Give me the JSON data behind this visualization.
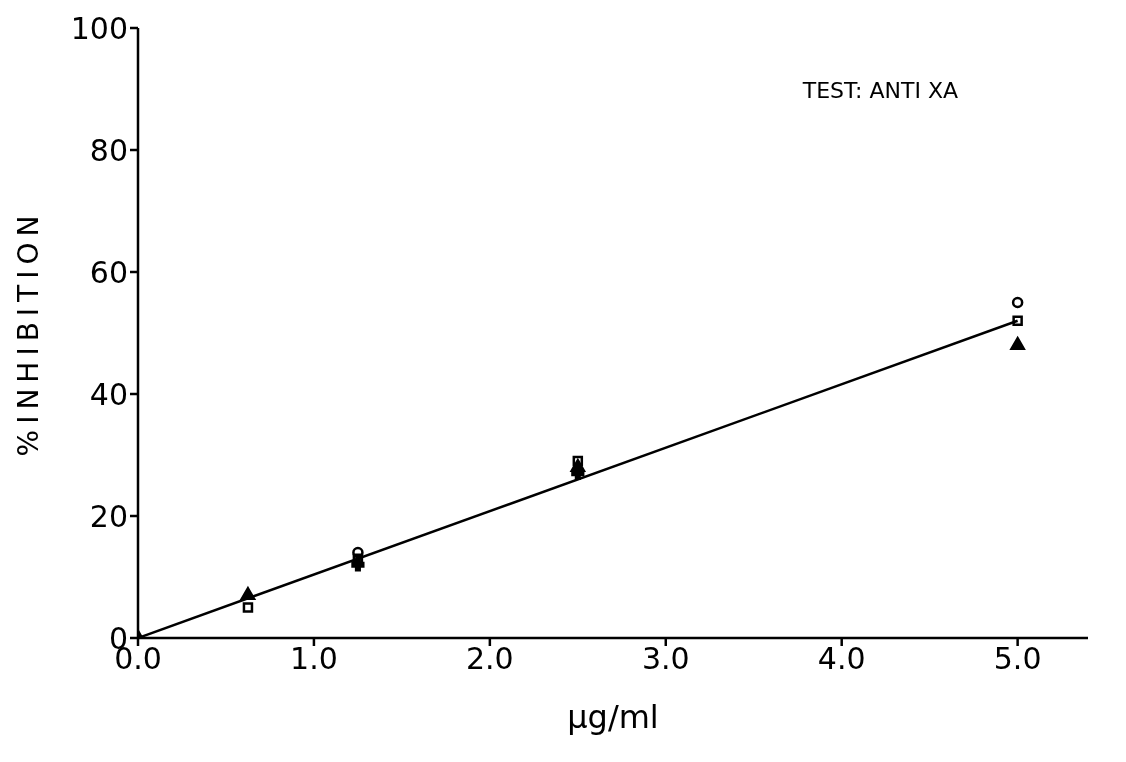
{
  "chart_data": {
    "type": "scatter",
    "xlabel": "µg/ml",
    "ylabel": "%INHIBITION",
    "annotations": [
      "TEST: ANTI XA"
    ],
    "xlim": [
      0,
      5.4
    ],
    "xticks": [
      {
        "value": 0,
        "label": "0.0"
      },
      {
        "value": 1,
        "label": "1.0"
      },
      {
        "value": 2,
        "label": "2.0"
      },
      {
        "value": 3,
        "label": "3.0"
      },
      {
        "value": 4,
        "label": "4.0"
      },
      {
        "value": 5,
        "label": "5.0"
      }
    ],
    "ylim": [
      0,
      100
    ],
    "yticks": [
      0,
      20,
      40,
      60,
      80,
      100
    ],
    "series": [
      {
        "marker": "circle",
        "color": "#000000",
        "x": [
          1.25,
          5
        ],
        "values": [
          14,
          55
        ]
      },
      {
        "marker": "square",
        "color": "#000000",
        "x": [
          0.625,
          1.25,
          2.5,
          5
        ],
        "values": [
          5,
          13,
          29,
          52
        ]
      },
      {
        "marker": "triangle",
        "color": "#000000",
        "x": [
          0,
          0.625,
          1.25,
          2.5,
          5
        ],
        "values": [
          0,
          7,
          null,
          28,
          48
        ]
      },
      {
        "marker": "cross",
        "color": "#000000",
        "x": [
          1.25,
          2.5
        ],
        "values": [
          12,
          27
        ]
      },
      {
        "type": "line",
        "marker": "none",
        "color": "#000000",
        "x": [
          0,
          5
        ],
        "values": [
          0,
          52
        ]
      }
    ]
  }
}
